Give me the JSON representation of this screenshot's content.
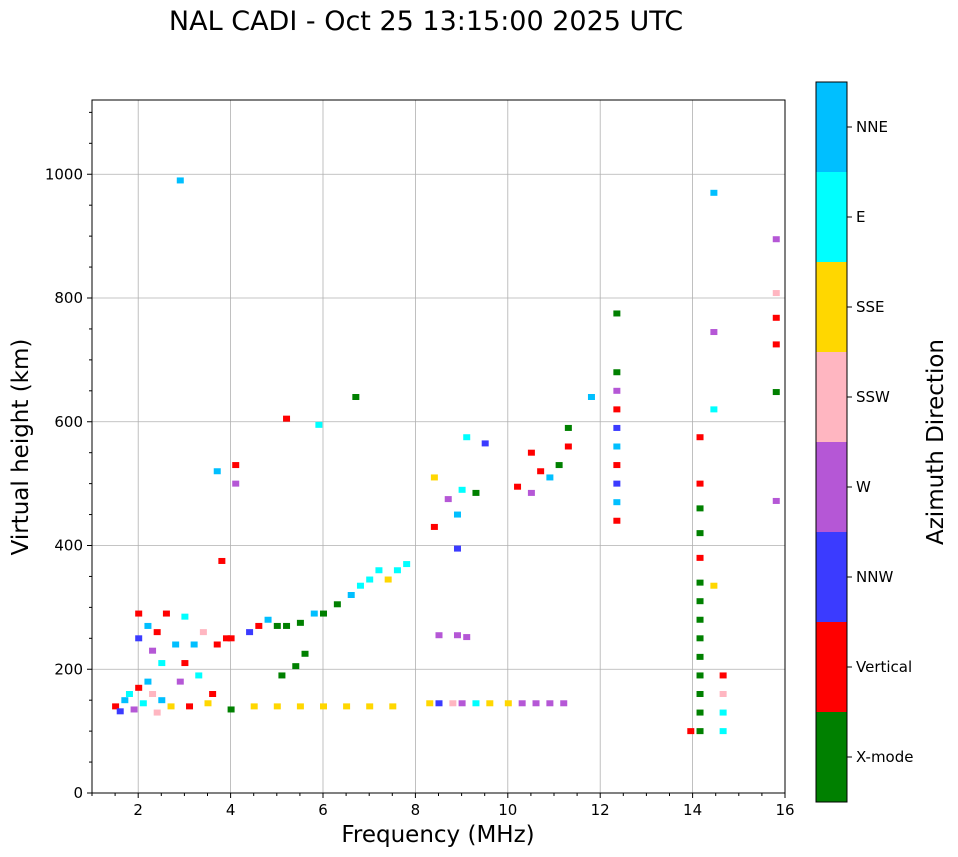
{
  "title": "NAL CADI - Oct 25 13:15:00 2025 UTC",
  "chart_data": {
    "type": "scatter",
    "title": "NAL CADI - Oct 25 13:15:00 2025 UTC",
    "xlabel": "Frequency (MHz)",
    "ylabel": "Virtual height (km)",
    "xlim": [
      1,
      16
    ],
    "ylim": [
      0,
      1120
    ],
    "xticks": [
      2,
      4,
      6,
      8,
      10,
      12,
      14,
      16
    ],
    "yticks": [
      0,
      200,
      400,
      600,
      800,
      1000
    ],
    "grid": true,
    "colorbar": {
      "label": "Azimuth Direction",
      "categories": [
        {
          "name": "X-mode",
          "color": "#008000"
        },
        {
          "name": "Vertical",
          "color": "#ff0000"
        },
        {
          "name": "NNW",
          "color": "#3b3bff"
        },
        {
          "name": "W",
          "color": "#b557d6"
        },
        {
          "name": "SSW",
          "color": "#ffb6c1"
        },
        {
          "name": "SSE",
          "color": "#ffd700"
        },
        {
          "name": "E",
          "color": "#00ffff"
        },
        {
          "name": "NNE",
          "color": "#00bfff"
        }
      ]
    },
    "points": [
      {
        "x": 1.5,
        "y": 140,
        "c": "Vertical"
      },
      {
        "x": 1.6,
        "y": 132,
        "c": "NNW"
      },
      {
        "x": 1.7,
        "y": 150,
        "c": "NNE"
      },
      {
        "x": 1.8,
        "y": 160,
        "c": "E"
      },
      {
        "x": 1.9,
        "y": 135,
        "c": "W"
      },
      {
        "x": 2.0,
        "y": 170,
        "c": "Vertical"
      },
      {
        "x": 2.0,
        "y": 250,
        "c": "NNW"
      },
      {
        "x": 2.0,
        "y": 290,
        "c": "Vertical"
      },
      {
        "x": 2.1,
        "y": 145,
        "c": "E"
      },
      {
        "x": 2.2,
        "y": 180,
        "c": "NNE"
      },
      {
        "x": 2.2,
        "y": 270,
        "c": "NNE"
      },
      {
        "x": 2.3,
        "y": 160,
        "c": "SSW"
      },
      {
        "x": 2.3,
        "y": 230,
        "c": "W"
      },
      {
        "x": 2.4,
        "y": 130,
        "c": "SSW"
      },
      {
        "x": 2.4,
        "y": 260,
        "c": "Vertical"
      },
      {
        "x": 2.5,
        "y": 210,
        "c": "E"
      },
      {
        "x": 2.5,
        "y": 150,
        "c": "NNE"
      },
      {
        "x": 2.6,
        "y": 290,
        "c": "Vertical"
      },
      {
        "x": 2.7,
        "y": 140,
        "c": "SSE"
      },
      {
        "x": 2.8,
        "y": 240,
        "c": "NNE"
      },
      {
        "x": 2.9,
        "y": 180,
        "c": "W"
      },
      {
        "x": 3.0,
        "y": 210,
        "c": "Vertical"
      },
      {
        "x": 3.0,
        "y": 285,
        "c": "E"
      },
      {
        "x": 3.1,
        "y": 140,
        "c": "Vertical"
      },
      {
        "x": 3.2,
        "y": 240,
        "c": "NNE"
      },
      {
        "x": 3.3,
        "y": 190,
        "c": "E"
      },
      {
        "x": 3.4,
        "y": 260,
        "c": "SSW"
      },
      {
        "x": 3.5,
        "y": 145,
        "c": "SSE"
      },
      {
        "x": 3.6,
        "y": 160,
        "c": "Vertical"
      },
      {
        "x": 3.7,
        "y": 240,
        "c": "Vertical"
      },
      {
        "x": 3.8,
        "y": 375,
        "c": "Vertical"
      },
      {
        "x": 3.9,
        "y": 250,
        "c": "Vertical"
      },
      {
        "x": 4.0,
        "y": 135,
        "c": "X-mode"
      },
      {
        "x": 4.0,
        "y": 250,
        "c": "Vertical"
      },
      {
        "x": 4.1,
        "y": 530,
        "c": "Vertical"
      },
      {
        "x": 3.7,
        "y": 520,
        "c": "NNE"
      },
      {
        "x": 4.1,
        "y": 500,
        "c": "W"
      },
      {
        "x": 4.4,
        "y": 260,
        "c": "NNW"
      },
      {
        "x": 4.6,
        "y": 270,
        "c": "Vertical"
      },
      {
        "x": 4.8,
        "y": 280,
        "c": "NNE"
      },
      {
        "x": 5.0,
        "y": 270,
        "c": "X-mode"
      },
      {
        "x": 5.1,
        "y": 190,
        "c": "X-mode"
      },
      {
        "x": 5.2,
        "y": 270,
        "c": "X-mode"
      },
      {
        "x": 5.4,
        "y": 205,
        "c": "X-mode"
      },
      {
        "x": 5.5,
        "y": 275,
        "c": "X-mode"
      },
      {
        "x": 5.6,
        "y": 225,
        "c": "X-mode"
      },
      {
        "x": 5.8,
        "y": 290,
        "c": "NNE"
      },
      {
        "x": 6.0,
        "y": 290,
        "c": "X-mode"
      },
      {
        "x": 6.3,
        "y": 305,
        "c": "X-mode"
      },
      {
        "x": 6.6,
        "y": 320,
        "c": "NNE"
      },
      {
        "x": 6.7,
        "y": 640,
        "c": "X-mode"
      },
      {
        "x": 6.8,
        "y": 335,
        "c": "E"
      },
      {
        "x": 7.0,
        "y": 345,
        "c": "E"
      },
      {
        "x": 7.2,
        "y": 360,
        "c": "E"
      },
      {
        "x": 7.4,
        "y": 345,
        "c": "SSE"
      },
      {
        "x": 7.6,
        "y": 360,
        "c": "E"
      },
      {
        "x": 7.8,
        "y": 370,
        "c": "E"
      },
      {
        "x": 5.2,
        "y": 605,
        "c": "Vertical"
      },
      {
        "x": 5.9,
        "y": 595,
        "c": "E"
      },
      {
        "x": 2.9,
        "y": 990,
        "c": "NNE"
      },
      {
        "x": 4.5,
        "y": 140,
        "c": "SSE"
      },
      {
        "x": 5.0,
        "y": 140,
        "c": "SSE"
      },
      {
        "x": 5.5,
        "y": 140,
        "c": "SSE"
      },
      {
        "x": 6.0,
        "y": 140,
        "c": "SSE"
      },
      {
        "x": 6.5,
        "y": 140,
        "c": "SSE"
      },
      {
        "x": 7.0,
        "y": 140,
        "c": "SSE"
      },
      {
        "x": 7.5,
        "y": 140,
        "c": "SSE"
      },
      {
        "x": 8.3,
        "y": 145,
        "c": "SSE"
      },
      {
        "x": 8.5,
        "y": 145,
        "c": "NNW"
      },
      {
        "x": 8.8,
        "y": 145,
        "c": "SSW"
      },
      {
        "x": 9.0,
        "y": 145,
        "c": "W"
      },
      {
        "x": 9.3,
        "y": 145,
        "c": "E"
      },
      {
        "x": 9.6,
        "y": 145,
        "c": "SSE"
      },
      {
        "x": 10.0,
        "y": 145,
        "c": "SSE"
      },
      {
        "x": 10.3,
        "y": 145,
        "c": "W"
      },
      {
        "x": 10.6,
        "y": 145,
        "c": "W"
      },
      {
        "x": 10.9,
        "y": 145,
        "c": "W"
      },
      {
        "x": 11.2,
        "y": 145,
        "c": "W"
      },
      {
        "x": 8.5,
        "y": 255,
        "c": "W"
      },
      {
        "x": 8.9,
        "y": 255,
        "c": "W"
      },
      {
        "x": 9.1,
        "y": 252,
        "c": "W"
      },
      {
        "x": 8.4,
        "y": 430,
        "c": "Vertical"
      },
      {
        "x": 8.4,
        "y": 510,
        "c": "SSE"
      },
      {
        "x": 8.7,
        "y": 475,
        "c": "W"
      },
      {
        "x": 8.9,
        "y": 450,
        "c": "NNE"
      },
      {
        "x": 9.0,
        "y": 490,
        "c": "E"
      },
      {
        "x": 9.1,
        "y": 575,
        "c": "E"
      },
      {
        "x": 9.3,
        "y": 485,
        "c": "X-mode"
      },
      {
        "x": 9.5,
        "y": 565,
        "c": "NNW"
      },
      {
        "x": 8.9,
        "y": 395,
        "c": "NNW"
      },
      {
        "x": 10.2,
        "y": 495,
        "c": "Vertical"
      },
      {
        "x": 10.5,
        "y": 485,
        "c": "W"
      },
      {
        "x": 10.7,
        "y": 520,
        "c": "Vertical"
      },
      {
        "x": 10.9,
        "y": 510,
        "c": "NNE"
      },
      {
        "x": 11.1,
        "y": 530,
        "c": "X-mode"
      },
      {
        "x": 11.3,
        "y": 560,
        "c": "Vertical"
      },
      {
        "x": 11.3,
        "y": 590,
        "c": "X-mode"
      },
      {
        "x": 11.8,
        "y": 640,
        "c": "NNE"
      },
      {
        "x": 10.5,
        "y": 550,
        "c": "Vertical"
      },
      {
        "x": 12.35,
        "y": 440,
        "c": "Vertical"
      },
      {
        "x": 12.35,
        "y": 470,
        "c": "NNE"
      },
      {
        "x": 12.35,
        "y": 500,
        "c": "NNW"
      },
      {
        "x": 12.35,
        "y": 530,
        "c": "Vertical"
      },
      {
        "x": 12.35,
        "y": 560,
        "c": "NNE"
      },
      {
        "x": 12.35,
        "y": 590,
        "c": "NNW"
      },
      {
        "x": 12.35,
        "y": 620,
        "c": "Vertical"
      },
      {
        "x": 12.35,
        "y": 650,
        "c": "W"
      },
      {
        "x": 12.35,
        "y": 680,
        "c": "X-mode"
      },
      {
        "x": 12.35,
        "y": 775,
        "c": "X-mode"
      },
      {
        "x": 14.15,
        "y": 100,
        "c": "X-mode"
      },
      {
        "x": 14.15,
        "y": 130,
        "c": "X-mode"
      },
      {
        "x": 14.15,
        "y": 160,
        "c": "X-mode"
      },
      {
        "x": 14.15,
        "y": 190,
        "c": "X-mode"
      },
      {
        "x": 14.15,
        "y": 220,
        "c": "X-mode"
      },
      {
        "x": 14.15,
        "y": 250,
        "c": "X-mode"
      },
      {
        "x": 14.15,
        "y": 280,
        "c": "X-mode"
      },
      {
        "x": 14.15,
        "y": 310,
        "c": "X-mode"
      },
      {
        "x": 14.15,
        "y": 340,
        "c": "X-mode"
      },
      {
        "x": 14.15,
        "y": 380,
        "c": "Vertical"
      },
      {
        "x": 14.15,
        "y": 420,
        "c": "X-mode"
      },
      {
        "x": 14.15,
        "y": 460,
        "c": "X-mode"
      },
      {
        "x": 14.15,
        "y": 500,
        "c": "Vertical"
      },
      {
        "x": 14.15,
        "y": 575,
        "c": "Vertical"
      },
      {
        "x": 13.95,
        "y": 100,
        "c": "Vertical"
      },
      {
        "x": 14.65,
        "y": 100,
        "c": "E"
      },
      {
        "x": 14.65,
        "y": 130,
        "c": "E"
      },
      {
        "x": 14.65,
        "y": 160,
        "c": "SSW"
      },
      {
        "x": 14.65,
        "y": 190,
        "c": "Vertical"
      },
      {
        "x": 14.45,
        "y": 970,
        "c": "NNE"
      },
      {
        "x": 14.45,
        "y": 745,
        "c": "W"
      },
      {
        "x": 14.45,
        "y": 620,
        "c": "E"
      },
      {
        "x": 14.45,
        "y": 335,
        "c": "SSE"
      },
      {
        "x": 15.8,
        "y": 895,
        "c": "W"
      },
      {
        "x": 15.8,
        "y": 768,
        "c": "Vertical"
      },
      {
        "x": 15.8,
        "y": 725,
        "c": "Vertical"
      },
      {
        "x": 15.8,
        "y": 648,
        "c": "X-mode"
      },
      {
        "x": 15.8,
        "y": 472,
        "c": "W"
      },
      {
        "x": 15.8,
        "y": 808,
        "c": "SSW"
      }
    ]
  }
}
